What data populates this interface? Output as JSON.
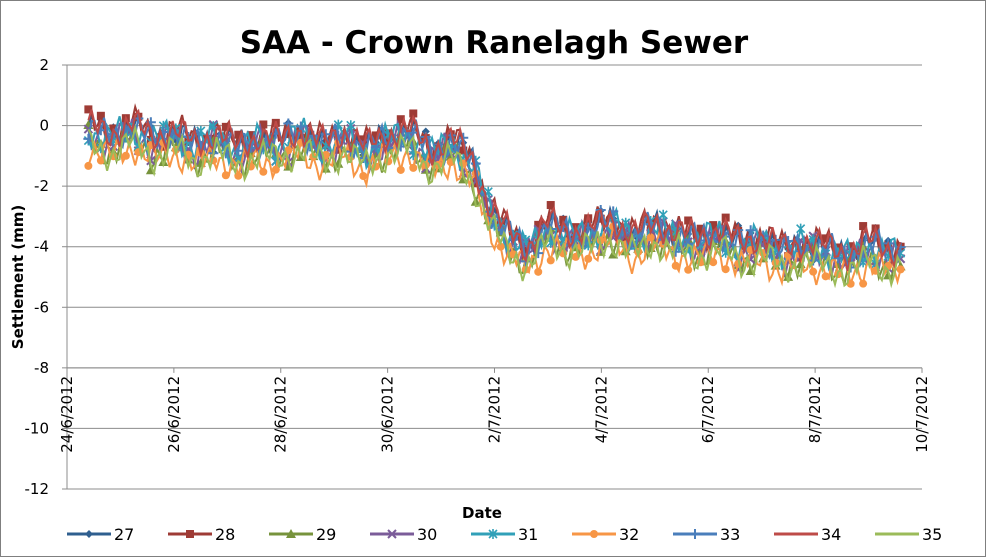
{
  "chart_data": {
    "type": "line",
    "title": "SAA - Crown Ranelagh Sewer",
    "xlabel": "Date",
    "ylabel": "Settlement (mm)",
    "ylim": [
      -12,
      2
    ],
    "y_ticks": [
      2,
      0,
      -2,
      -4,
      -6,
      -8,
      -10,
      -12
    ],
    "y_tick_labels": [
      "2",
      "0",
      "-2",
      "-4",
      "-6",
      "-8",
      "-10",
      "-12"
    ],
    "xlim_days": [
      0,
      16
    ],
    "x_tick_days": [
      0,
      2,
      4,
      6,
      8,
      10,
      12,
      14,
      16
    ],
    "x_tick_labels": [
      "24/6/2012",
      "26/6/2012",
      "28/6/2012",
      "30/6/2012",
      "2/7/2012",
      "4/7/2012",
      "6/7/2012",
      "8/7/2012",
      "10/7/2012"
    ],
    "grid": true,
    "legend_position": "bottom",
    "series": [
      {
        "name": "27",
        "color": "#2f5f8f",
        "marker": "diamond",
        "offset": 0.15
      },
      {
        "name": "28",
        "color": "#9e3b35",
        "marker": "square",
        "offset": 0.25
      },
      {
        "name": "29",
        "color": "#77933c",
        "marker": "triangle",
        "offset": -0.35
      },
      {
        "name": "30",
        "color": "#7b5c99",
        "marker": "x",
        "offset": -0.1
      },
      {
        "name": "31",
        "color": "#31a0b8",
        "marker": "star",
        "offset": 0.05
      },
      {
        "name": "32",
        "color": "#f79646",
        "marker": "circle",
        "offset": -0.55
      },
      {
        "name": "33",
        "color": "#4a7ebb",
        "marker": "plus",
        "offset": 0.1
      },
      {
        "name": "34",
        "color": "#be4b48",
        "marker": "none",
        "offset": 0.2
      },
      {
        "name": "35",
        "color": "#9bbb59",
        "marker": "none",
        "offset": -0.45
      }
    ],
    "base_profile": [
      {
        "day": 0.4,
        "value": -0.2
      },
      {
        "day": 0.8,
        "value": -0.5
      },
      {
        "day": 1.2,
        "value": -0.1
      },
      {
        "day": 1.6,
        "value": -0.6
      },
      {
        "day": 2.0,
        "value": -0.3
      },
      {
        "day": 2.4,
        "value": -0.8
      },
      {
        "day": 2.8,
        "value": -0.4
      },
      {
        "day": 3.2,
        "value": -0.9
      },
      {
        "day": 3.6,
        "value": -0.5
      },
      {
        "day": 4.0,
        "value": -0.7
      },
      {
        "day": 4.4,
        "value": -0.3
      },
      {
        "day": 4.8,
        "value": -0.8
      },
      {
        "day": 5.2,
        "value": -0.4
      },
      {
        "day": 5.6,
        "value": -0.9
      },
      {
        "day": 6.0,
        "value": -0.5
      },
      {
        "day": 6.4,
        "value": -0.3
      },
      {
        "day": 6.8,
        "value": -1.0
      },
      {
        "day": 7.2,
        "value": -0.6
      },
      {
        "day": 7.6,
        "value": -1.4
      },
      {
        "day": 7.9,
        "value": -2.8
      },
      {
        "day": 8.2,
        "value": -3.6
      },
      {
        "day": 8.6,
        "value": -4.2
      },
      {
        "day": 9.0,
        "value": -3.4
      },
      {
        "day": 9.4,
        "value": -3.7
      },
      {
        "day": 9.8,
        "value": -3.6
      },
      {
        "day": 10.2,
        "value": -3.3
      },
      {
        "day": 10.6,
        "value": -3.8
      },
      {
        "day": 11.0,
        "value": -3.4
      },
      {
        "day": 11.4,
        "value": -3.7
      },
      {
        "day": 11.8,
        "value": -3.9
      },
      {
        "day": 12.2,
        "value": -3.6
      },
      {
        "day": 12.6,
        "value": -4.1
      },
      {
        "day": 13.0,
        "value": -3.8
      },
      {
        "day": 13.4,
        "value": -4.3
      },
      {
        "day": 13.8,
        "value": -4.0
      },
      {
        "day": 14.2,
        "value": -4.2
      },
      {
        "day": 14.6,
        "value": -4.4
      },
      {
        "day": 15.0,
        "value": -4.0
      },
      {
        "day": 15.4,
        "value": -4.3
      },
      {
        "day": 15.8,
        "value": -4.1
      }
    ]
  }
}
